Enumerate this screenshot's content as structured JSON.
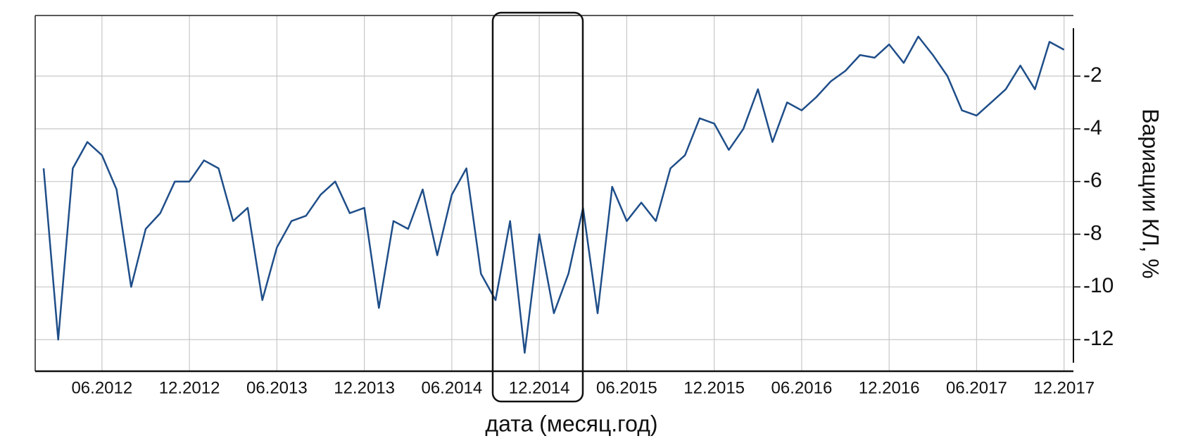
{
  "chart_data": {
    "type": "line",
    "x_label": "дата (месяц.год)",
    "y_label": "Вариации КЛ, %",
    "x": [
      "02.2012",
      "03.2012",
      "04.2012",
      "05.2012",
      "06.2012",
      "07.2012",
      "08.2012",
      "09.2012",
      "10.2012",
      "11.2012",
      "12.2012",
      "01.2013",
      "02.2013",
      "03.2013",
      "04.2013",
      "05.2013",
      "06.2013",
      "07.2013",
      "08.2013",
      "09.2013",
      "10.2013",
      "11.2013",
      "12.2013",
      "01.2014",
      "02.2014",
      "03.2014",
      "04.2014",
      "05.2014",
      "06.2014",
      "07.2014",
      "08.2014",
      "09.2014",
      "10.2014",
      "11.2014",
      "12.2014",
      "01.2015",
      "02.2015",
      "03.2015",
      "04.2015",
      "05.2015",
      "06.2015",
      "07.2015",
      "08.2015",
      "09.2015",
      "10.2015",
      "11.2015",
      "12.2015",
      "01.2016",
      "02.2016",
      "03.2016",
      "04.2016",
      "05.2016",
      "06.2016",
      "07.2016",
      "08.2016",
      "09.2016",
      "10.2016",
      "11.2016",
      "12.2016",
      "01.2017",
      "02.2017",
      "03.2017",
      "04.2017",
      "05.2017",
      "06.2017",
      "07.2017",
      "08.2017",
      "09.2017",
      "10.2017",
      "11.2017",
      "12.2017"
    ],
    "values": [
      -5.5,
      -12.0,
      -5.5,
      -4.5,
      -5.0,
      -6.3,
      -10.0,
      -7.8,
      -7.2,
      -6.0,
      -6.0,
      -5.2,
      -5.5,
      -7.5,
      -7.0,
      -10.5,
      -8.5,
      -7.5,
      -7.3,
      -6.5,
      -6.0,
      -7.2,
      -7.0,
      -10.8,
      -7.5,
      -7.8,
      -6.3,
      -8.8,
      -6.5,
      -5.5,
      -9.5,
      -10.5,
      -7.5,
      -12.5,
      -8.0,
      -11.0,
      -9.5,
      -7.0,
      -11.0,
      -6.2,
      -7.5,
      -6.8,
      -7.5,
      -5.5,
      -5.0,
      -3.6,
      -3.8,
      -4.8,
      -4.0,
      -2.5,
      -4.5,
      -3.0,
      -3.3,
      -2.8,
      -2.2,
      -1.8,
      -1.2,
      -1.3,
      -0.8,
      -1.5,
      -0.5,
      -1.2,
      -2.0,
      -3.3,
      -3.5,
      -3.0,
      -2.5,
      -1.6,
      -2.5,
      -0.7,
      -1.0
    ],
    "color": "#1f4e89",
    "ylim": [
      -13.2,
      0.3
    ],
    "yticks": [
      -12,
      -10,
      -8,
      -6,
      -4,
      -2
    ],
    "xticks": [
      "06.2012",
      "12.2012",
      "06.2013",
      "12.2013",
      "06.2014",
      "12.2014",
      "06.2015",
      "12.2015",
      "06.2016",
      "12.2016",
      "06.2017",
      "12.2017"
    ],
    "grid": true
  }
}
